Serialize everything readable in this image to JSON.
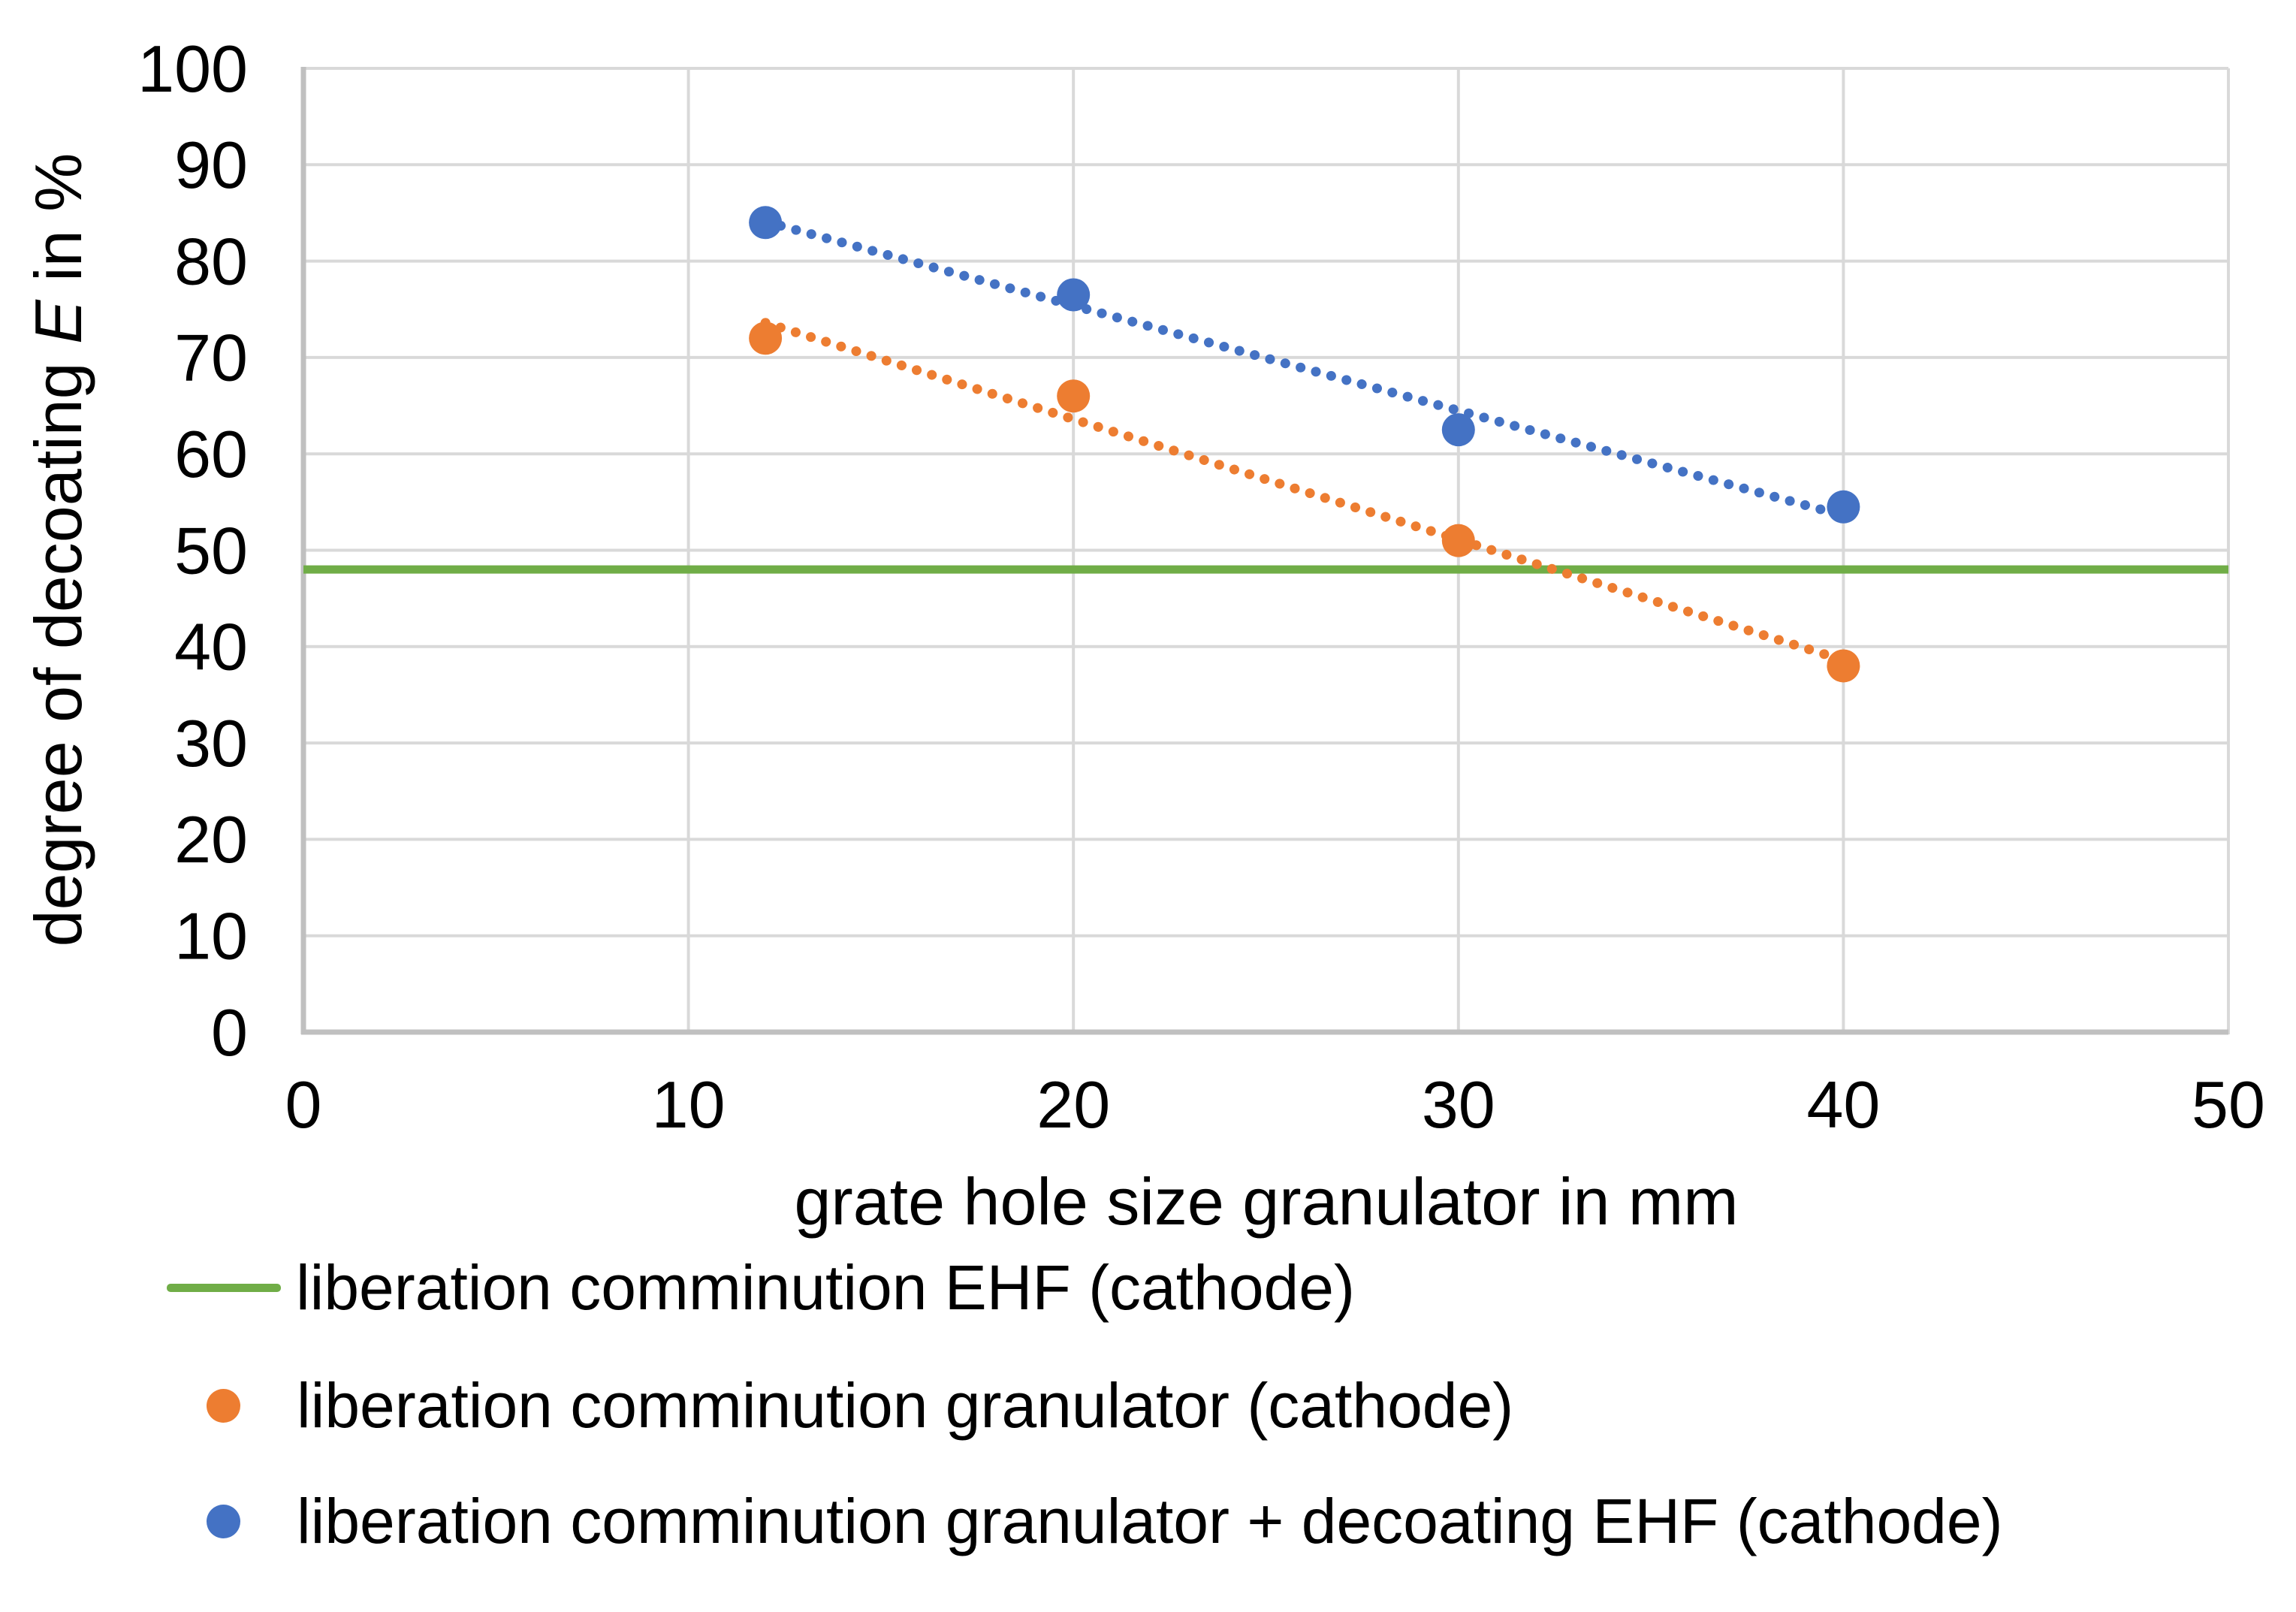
{
  "figure": {
    "background": "#FFFFFF",
    "grid_color": "#D9D9D9",
    "axis_color": "#C0C0C0",
    "text_color": "#000000"
  },
  "chart_data": {
    "type": "scatter",
    "title": "",
    "xlabel": "grate hole size granulator in mm",
    "ylabel": "degree of decoating E in %",
    "ylabel_parts": {
      "pre": "degree of decoating ",
      "italic_var": "E",
      "post": " in %"
    },
    "xlim": [
      0,
      50
    ],
    "ylim": [
      0,
      100
    ],
    "xticks": [
      "0",
      "10",
      "20",
      "30",
      "40",
      "50"
    ],
    "yticks": [
      "0",
      "10",
      "20",
      "30",
      "40",
      "50",
      "60",
      "70",
      "80",
      "90",
      "100"
    ],
    "grid": true,
    "legend_position": "bottom-left",
    "series": [
      {
        "name": "liberation comminution EHF (cathode)",
        "kind": "hline",
        "value": 48,
        "color": "#70AD47",
        "line_width": 11,
        "legend_marker": "line"
      },
      {
        "name": "liberation comminution granulator (cathode)",
        "kind": "scatter",
        "color": "#ED7D31",
        "legend_marker": "dot",
        "x": [
          12,
          20,
          30,
          40
        ],
        "y": [
          72,
          66,
          51,
          38
        ],
        "trendline": {
          "style": "dotted",
          "x": [
            12,
            40
          ],
          "y": [
            73.6,
            38.6
          ]
        }
      },
      {
        "name": "liberation comminution granulator + decoating EHF (cathode)",
        "kind": "scatter",
        "color": "#4472C4",
        "legend_marker": "dot",
        "x": [
          12,
          20,
          30,
          40
        ],
        "y": [
          84,
          76.5,
          62.5,
          54.5
        ],
        "trendline": {
          "style": "dotted",
          "x": [
            12,
            40
          ],
          "y": [
            84.1,
            53.6
          ]
        }
      }
    ]
  }
}
